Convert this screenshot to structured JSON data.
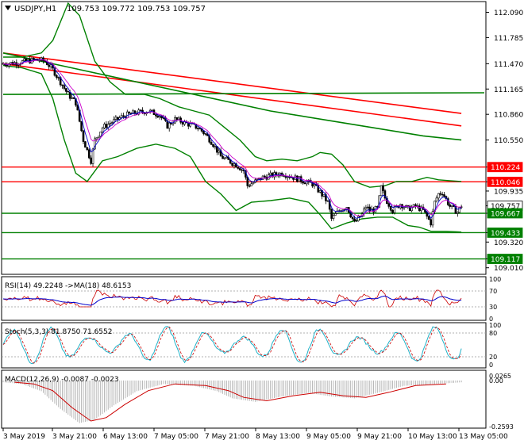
{
  "header": {
    "symbol": "USDJPY,H1",
    "ohlc": "109.753 109.772 109.753 109.757"
  },
  "price_axis": {
    "ticks": [
      "112.090",
      "111.785",
      "111.470",
      "111.165",
      "110.860",
      "110.550",
      "110.224",
      "110.046",
      "109.935",
      "109.757",
      "109.667",
      "109.433",
      "109.320",
      "109.117",
      "109.010"
    ],
    "label_boxes": [
      {
        "text": "110.224",
        "color": "#ff0000"
      },
      {
        "text": "110.046",
        "color": "#ff0000"
      },
      {
        "text": "109.757",
        "color": "#ffffff"
      },
      {
        "text": "109.667",
        "color": "#008000"
      },
      {
        "text": "109.433",
        "color": "#008000"
      },
      {
        "text": "109.117",
        "color": "#008000"
      }
    ]
  },
  "levels": {
    "resistance": [
      110.224,
      110.046
    ],
    "support": [
      109.667,
      109.433,
      109.117
    ],
    "resistance_color": "#ff0000",
    "support_color": "#008000"
  },
  "rsi": {
    "label": "RSI(14) 49.2248  ->MA(18) 48.6153",
    "ticks": [
      "100",
      "70",
      "30",
      "0"
    ]
  },
  "stoch": {
    "label": "Stoch(5,3,3) 81.8750 71.6552",
    "ticks": [
      "100",
      "80",
      "20",
      "0"
    ]
  },
  "macd": {
    "label": "MACD(12,26,9) -0.0087 -0.0023",
    "ticks": [
      "0.0265",
      "0.00",
      "-0.2593"
    ]
  },
  "time_axis": [
    "3 May 2019",
    "3 May 21:00",
    "6 May 13:00",
    "7 May 05:00",
    "7 May 21:00",
    "8 May 13:00",
    "9 May 05:00",
    "9 May 21:00",
    "10 May 13:00",
    "13 May 05:00"
  ],
  "chart_data": {
    "type": "candlestick",
    "symbol": "USDJPY",
    "timeframe": "H1",
    "ylim": [
      108.95,
      112.2
    ],
    "close_path": [
      [
        0,
        111.47
      ],
      [
        6,
        111.48
      ],
      [
        12,
        111.5
      ],
      [
        18,
        111.52
      ],
      [
        22,
        111.5
      ],
      [
        26,
        111.4
      ],
      [
        30,
        111.25
      ],
      [
        34,
        111.1
      ],
      [
        38,
        111.0
      ],
      [
        42,
        110.55
      ],
      [
        46,
        110.3
      ],
      [
        48,
        110.55
      ],
      [
        52,
        110.7
      ],
      [
        58,
        110.78
      ],
      [
        64,
        110.85
      ],
      [
        70,
        110.88
      ],
      [
        76,
        110.9
      ],
      [
        82,
        110.85
      ],
      [
        86,
        110.72
      ],
      [
        90,
        110.8
      ],
      [
        96,
        110.75
      ],
      [
        102,
        110.7
      ],
      [
        106,
        110.62
      ],
      [
        110,
        110.5
      ],
      [
        114,
        110.35
      ],
      [
        118,
        110.3
      ],
      [
        122,
        110.25
      ],
      [
        126,
        110.18
      ],
      [
        128,
        110.0
      ],
      [
        132,
        110.05
      ],
      [
        136,
        110.1
      ],
      [
        140,
        110.12
      ],
      [
        146,
        110.15
      ],
      [
        152,
        110.1
      ],
      [
        158,
        110.05
      ],
      [
        162,
        110.02
      ],
      [
        166,
        109.92
      ],
      [
        170,
        109.8
      ],
      [
        172,
        109.6
      ],
      [
        176,
        109.7
      ],
      [
        180,
        109.75
      ],
      [
        184,
        109.55
      ],
      [
        188,
        109.65
      ],
      [
        190,
        109.75
      ],
      [
        192,
        109.7
      ],
      [
        196,
        109.72
      ],
      [
        198,
        109.98
      ],
      [
        200,
        109.85
      ],
      [
        204,
        109.7
      ],
      [
        208,
        109.78
      ],
      [
        212,
        109.72
      ],
      [
        216,
        109.75
      ],
      [
        220,
        109.7
      ],
      [
        224,
        109.55
      ],
      [
        226,
        109.8
      ],
      [
        228,
        109.9
      ],
      [
        230,
        109.92
      ],
      [
        234,
        109.75
      ],
      [
        238,
        109.68
      ],
      [
        240,
        109.76
      ]
    ],
    "ma_lines": [
      {
        "color": "#ff0000",
        "points": [
          [
            0,
            111.6
          ],
          [
            240,
            110.87
          ]
        ]
      },
      {
        "color": "#ff0000",
        "points": [
          [
            0,
            111.47
          ],
          [
            240,
            110.72
          ]
        ]
      },
      {
        "color": "#008000",
        "points": [
          [
            0,
            111.6
          ],
          [
            30,
            111.45
          ],
          [
            60,
            111.3
          ],
          [
            100,
            111.1
          ],
          [
            140,
            110.9
          ],
          [
            180,
            110.75
          ],
          [
            220,
            110.6
          ],
          [
            240,
            110.55
          ]
        ]
      },
      {
        "color": "#008000",
        "points": [
          [
            0,
            111.1
          ],
          [
            252,
            111.12
          ]
        ]
      }
    ],
    "bollinger": {
      "color": "#008000",
      "upper": [
        [
          0,
          111.55
        ],
        [
          10,
          111.55
        ],
        [
          20,
          111.6
        ],
        [
          26,
          111.75
        ],
        [
          34,
          112.2
        ],
        [
          40,
          112.05
        ],
        [
          48,
          111.5
        ],
        [
          56,
          111.25
        ],
        [
          64,
          111.1
        ],
        [
          74,
          111.1
        ],
        [
          82,
          111.05
        ],
        [
          92,
          110.95
        ],
        [
          100,
          110.9
        ],
        [
          108,
          110.85
        ],
        [
          116,
          110.7
        ],
        [
          124,
          110.55
        ],
        [
          132,
          110.35
        ],
        [
          138,
          110.3
        ],
        [
          146,
          110.32
        ],
        [
          154,
          110.3
        ],
        [
          162,
          110.35
        ],
        [
          166,
          110.4
        ],
        [
          172,
          110.38
        ],
        [
          178,
          110.25
        ],
        [
          184,
          110.05
        ],
        [
          192,
          109.98
        ],
        [
          200,
          110.0
        ],
        [
          206,
          110.05
        ],
        [
          214,
          110.05
        ],
        [
          222,
          110.1
        ],
        [
          228,
          110.07
        ],
        [
          234,
          110.06
        ],
        [
          240,
          110.05
        ]
      ],
      "lower": [
        [
          0,
          111.45
        ],
        [
          10,
          111.42
        ],
        [
          20,
          111.35
        ],
        [
          26,
          111.05
        ],
        [
          32,
          110.55
        ],
        [
          38,
          110.15
        ],
        [
          44,
          110.05
        ],
        [
          52,
          110.3
        ],
        [
          60,
          110.35
        ],
        [
          70,
          110.45
        ],
        [
          80,
          110.5
        ],
        [
          90,
          110.45
        ],
        [
          98,
          110.35
        ],
        [
          106,
          110.05
        ],
        [
          114,
          109.9
        ],
        [
          122,
          109.7
        ],
        [
          130,
          109.8
        ],
        [
          140,
          109.82
        ],
        [
          150,
          109.85
        ],
        [
          160,
          109.8
        ],
        [
          166,
          109.65
        ],
        [
          172,
          109.48
        ],
        [
          180,
          109.55
        ],
        [
          188,
          109.6
        ],
        [
          196,
          109.62
        ],
        [
          204,
          109.62
        ],
        [
          212,
          109.52
        ],
        [
          218,
          109.5
        ],
        [
          224,
          109.45
        ],
        [
          232,
          109.45
        ],
        [
          240,
          109.44
        ]
      ]
    }
  }
}
